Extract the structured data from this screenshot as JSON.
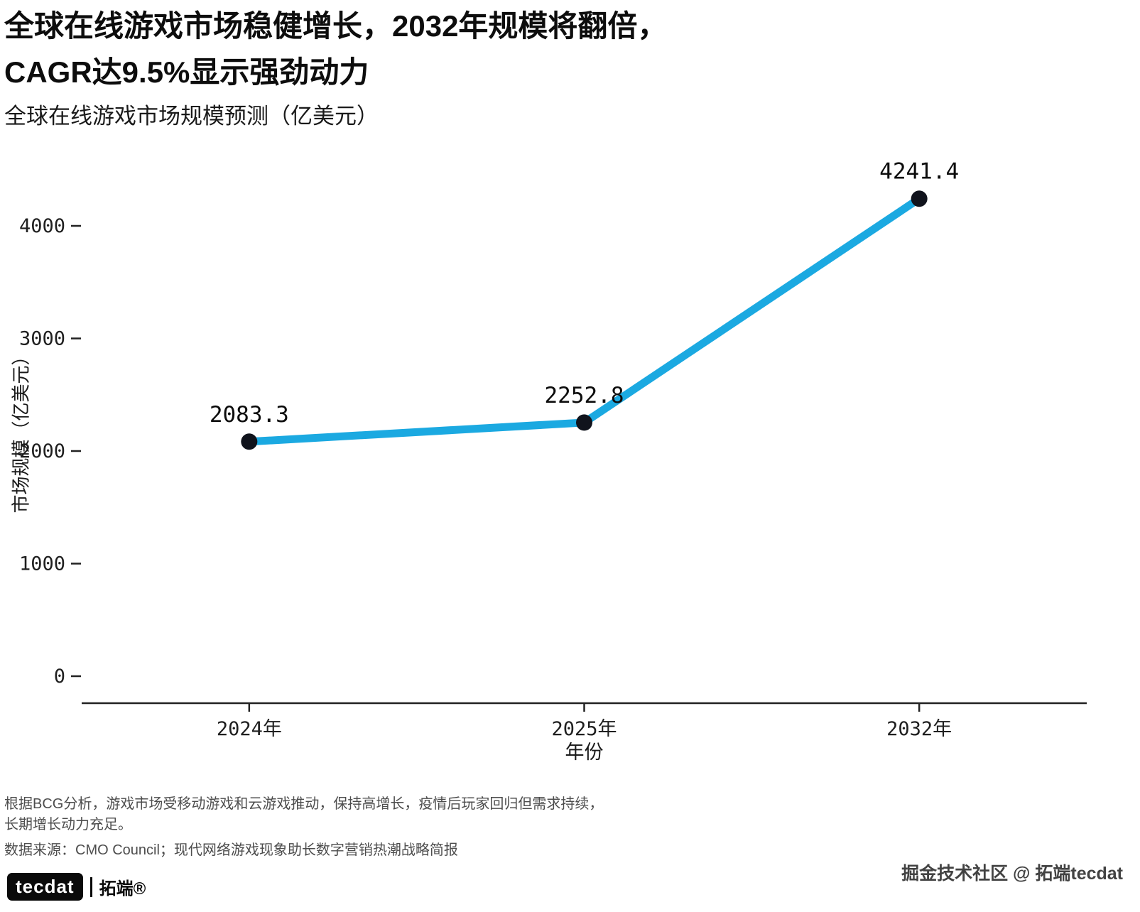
{
  "title": {
    "line1": "全球在线游戏市场稳健增长，2032年规模将翻倍，",
    "line2": "CAGR达9.5%显示强劲动力"
  },
  "subtitle": "全球在线游戏市场规模预测（亿美元）",
  "chart_data": {
    "type": "line",
    "categories": [
      "2024年",
      "2025年",
      "2032年"
    ],
    "values": [
      2083.3,
      2252.8,
      4241.4
    ],
    "point_labels": [
      "2083.3",
      "2252.8",
      "4241.4"
    ],
    "xlabel": "年份",
    "ylabel": "市场规模（亿美元）",
    "yticks": [
      0,
      1000,
      2000,
      3000,
      4000
    ],
    "ylim": [
      0,
      4500
    ],
    "grid": false,
    "legend_position": "none",
    "line_color": "#1BA9E1",
    "point_color": "#10131C",
    "axis_color": "#222222"
  },
  "footer": {
    "note_line1": "根据BCG分析，游戏市场受移动游戏和云游戏推动，保持高增长，疫情后玩家回归但需求持续，",
    "note_line2": "长期增长动力充足。",
    "source": "数据来源：CMO Council；现代网络游戏现象助长数字营销热潮战略简报"
  },
  "branding": {
    "logo_text": "tecdat",
    "logo_suffix": "拓端®",
    "watermark": "掘金技术社区 @ 拓端tecdat"
  }
}
